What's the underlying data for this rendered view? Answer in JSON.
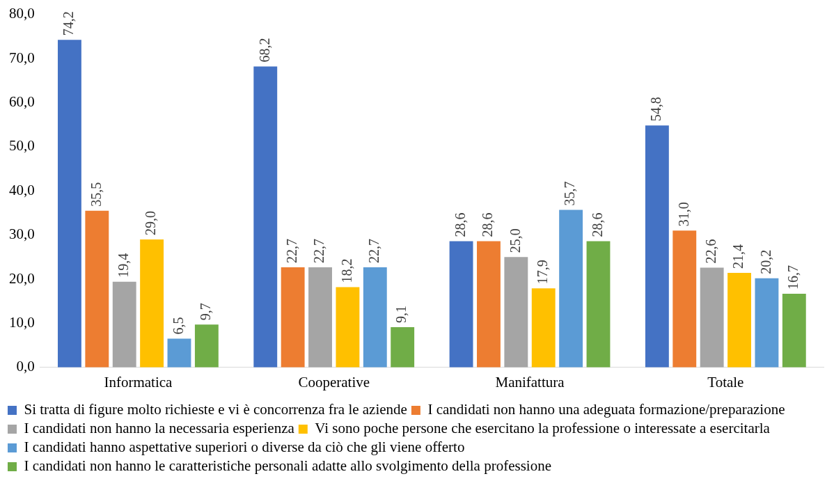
{
  "chart_data": {
    "type": "bar",
    "categories": [
      "Informatica",
      "Cooperative",
      "Manifattura",
      "Totale"
    ],
    "series": [
      {
        "name": "Si tratta di figure molto richieste e vi è concorrenza fra le aziende",
        "color": "#4472c4",
        "values": [
          74.2,
          68.2,
          28.6,
          54.8
        ],
        "value_labels": [
          "74,2",
          "68,2",
          "28,6",
          "54,8"
        ]
      },
      {
        "name": "I candidati non hanno una adeguata formazione/preparazione",
        "color": "#ed7d31",
        "values": [
          35.5,
          22.7,
          28.6,
          31.0
        ],
        "value_labels": [
          "35,5",
          "22,7",
          "28,6",
          "31,0"
        ]
      },
      {
        "name": "I candidati non hanno la necessaria esperienza",
        "color": "#a5a5a5",
        "values": [
          19.4,
          22.7,
          25.0,
          22.6
        ],
        "value_labels": [
          "19,4",
          "22,7",
          "25,0",
          "22,6"
        ]
      },
      {
        "name": "Vi sono poche persone che esercitano la professione o interessate a esercitarla",
        "color": "#ffc000",
        "values": [
          29.0,
          18.2,
          17.9,
          21.4
        ],
        "value_labels": [
          "29,0",
          "18,2",
          "17,9",
          "21,4"
        ]
      },
      {
        "name": "I candidati hanno aspettative superiori o diverse da ciò che gli viene offerto",
        "color": "#5b9bd5",
        "values": [
          6.5,
          22.7,
          35.7,
          20.2
        ],
        "value_labels": [
          "6,5",
          "22,7",
          "35,7",
          "20,2"
        ]
      },
      {
        "name": "I candidati non hanno le caratteristiche personali adatte allo svolgimento della professione",
        "color": "#70ad47",
        "values": [
          9.7,
          9.1,
          28.6,
          16.7
        ],
        "value_labels": [
          "9,7",
          "9,1",
          "28,6",
          "16,7"
        ]
      }
    ],
    "ylim": [
      0,
      80
    ],
    "yticks": [
      {
        "value": 0,
        "label": "0,0"
      },
      {
        "value": 10,
        "label": "10,0"
      },
      {
        "value": 20,
        "label": "20,0"
      },
      {
        "value": 30,
        "label": "30,0"
      },
      {
        "value": 40,
        "label": "40,0"
      },
      {
        "value": 50,
        "label": "50,0"
      },
      {
        "value": 60,
        "label": "60,0"
      },
      {
        "value": 70,
        "label": "70,0"
      },
      {
        "value": 80,
        "label": "80,0"
      }
    ],
    "grid": false,
    "legend": "bottom"
  }
}
